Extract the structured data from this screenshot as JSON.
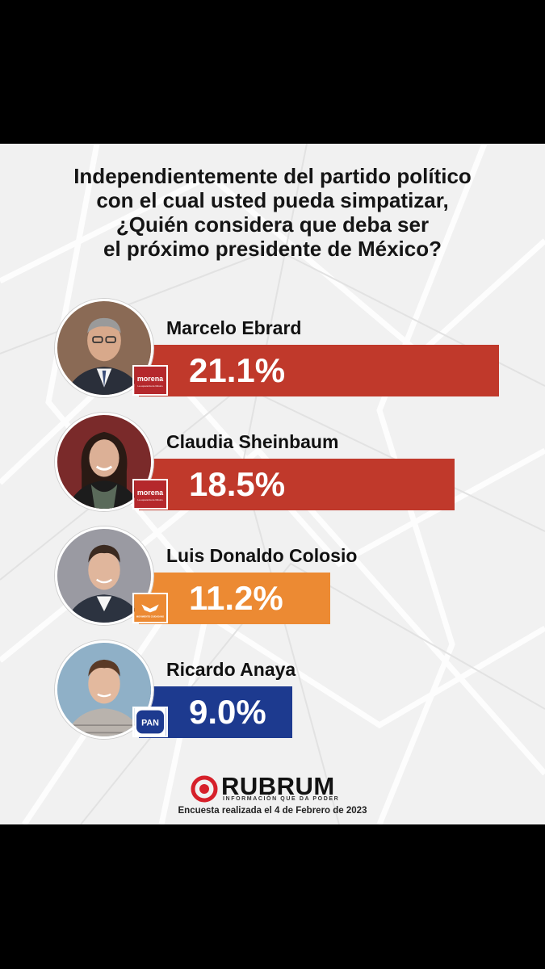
{
  "question": [
    "Independientemente del partido político",
    "con el cual usted pueda simpatizar,",
    "¿Quién considera que deba ser",
    "el próximo presidente de México?"
  ],
  "chart_data": {
    "type": "bar",
    "title": "Independientemente del partido político con el cual usted pueda simpatizar, ¿Quién considera que deba ser el próximo presidente de México?",
    "unit": "%",
    "categories": [
      "Marcelo Ebrard",
      "Claudia Sheinbaum",
      "Luis Donaldo Colosio",
      "Ricardo Anaya"
    ],
    "values": [
      21.1,
      18.5,
      11.2,
      9.0
    ],
    "value_labels": [
      "21.1%",
      "18.5%",
      "11.2%",
      "9.0%"
    ],
    "colors": [
      "#c0392b",
      "#c0392b",
      "#ec8a33",
      "#1d3a8f"
    ],
    "bar_orientation": "horizontal"
  },
  "candidates": [
    {
      "name": "Marcelo Ebrard",
      "party_icon": "morena-logo",
      "party_text": "morena",
      "party_subtext": "La esperanza de México",
      "photo_icon": "man-portrait"
    },
    {
      "name": "Claudia Sheinbaum",
      "party_icon": "morena-logo",
      "party_text": "morena",
      "party_subtext": "La esperanza de México",
      "photo_icon": "woman-portrait"
    },
    {
      "name": "Luis Donaldo Colosio",
      "party_icon": "movimiento-ciudadano-logo",
      "party_text": "MOVIMIENTO CIUDADANO",
      "photo_icon": "man-portrait"
    },
    {
      "name": "Ricardo Anaya",
      "party_icon": "pan-logo",
      "party_text": "PAN",
      "photo_icon": "man-portrait"
    }
  ],
  "brand": {
    "name": "RUBRUM",
    "tagline": "INFORMACIÓN QUE DA PODER",
    "icon": "rubrum-target-icon",
    "color": "#d6202a"
  },
  "survey_note": "Encuesta realizada el 4 de Febrero de 2023"
}
